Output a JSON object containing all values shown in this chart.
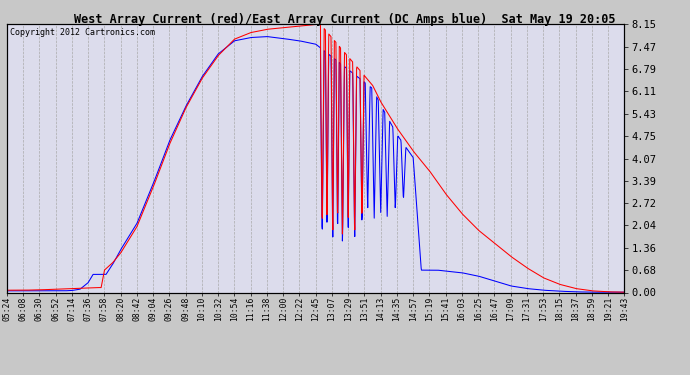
{
  "title": "West Array Current (red)/East Array Current (DC Amps blue)  Sat May 19 20:05",
  "copyright": "Copyright 2012 Cartronics.com",
  "ylabel_right": [
    "0.00",
    "0.68",
    "1.36",
    "2.04",
    "2.72",
    "3.39",
    "4.07",
    "4.75",
    "5.43",
    "6.11",
    "6.79",
    "7.47",
    "8.15"
  ],
  "yticks": [
    0.0,
    0.68,
    1.36,
    2.04,
    2.72,
    3.39,
    4.07,
    4.75,
    5.43,
    6.11,
    6.79,
    7.47,
    8.15
  ],
  "ylim": [
    0.0,
    8.15
  ],
  "xtick_labels": [
    "05:24",
    "06:08",
    "06:30",
    "06:52",
    "07:14",
    "07:36",
    "07:58",
    "08:20",
    "08:42",
    "09:04",
    "09:26",
    "09:48",
    "10:10",
    "10:32",
    "10:54",
    "11:16",
    "11:38",
    "12:00",
    "12:22",
    "12:45",
    "13:07",
    "13:29",
    "13:51",
    "14:13",
    "14:35",
    "14:57",
    "15:19",
    "15:41",
    "16:03",
    "16:25",
    "16:47",
    "17:09",
    "17:31",
    "17:53",
    "18:15",
    "18:37",
    "18:59",
    "19:21",
    "19:43"
  ],
  "bg_color": "#c8c8c8",
  "plot_bg_color": "#dcdcec",
  "grid_color": "#aaaaaa",
  "red_color": "#ff0000",
  "blue_color": "#0000ff"
}
